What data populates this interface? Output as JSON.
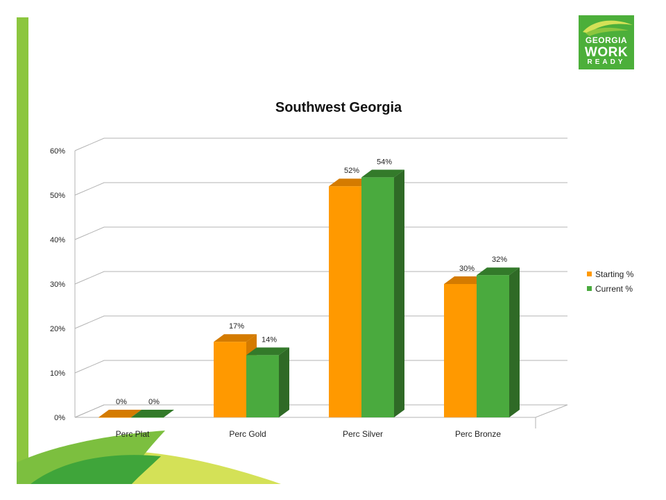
{
  "chart_data": {
    "type": "bar",
    "title": "Southwest Georgia",
    "categories": [
      "Perc Plat",
      "Perc Gold",
      "Perc Silver",
      "Perc Bronze"
    ],
    "series": [
      {
        "name": "Starting %",
        "values": [
          0,
          17,
          52,
          30
        ],
        "labels": [
          "0%",
          "17%",
          "52%",
          "30%"
        ]
      },
      {
        "name": "Current %",
        "values": [
          0,
          14,
          54,
          32
        ],
        "labels": [
          "0%",
          "14%",
          "54%",
          "32%"
        ]
      }
    ],
    "yticks": [
      "0%",
      "10%",
      "20%",
      "30%",
      "40%",
      "50%",
      "60%"
    ],
    "ylim": [
      0,
      60
    ],
    "grid": true,
    "legend": "right",
    "colors": {
      "starting": "#ff9900",
      "starting_top": "#d47b00",
      "current": "#4aaa3e",
      "current_top": "#337a2a",
      "current_side": "#2f6a26"
    }
  },
  "logo": {
    "line1": "GEORGIA",
    "line2": "WORK",
    "line3": "READY"
  }
}
